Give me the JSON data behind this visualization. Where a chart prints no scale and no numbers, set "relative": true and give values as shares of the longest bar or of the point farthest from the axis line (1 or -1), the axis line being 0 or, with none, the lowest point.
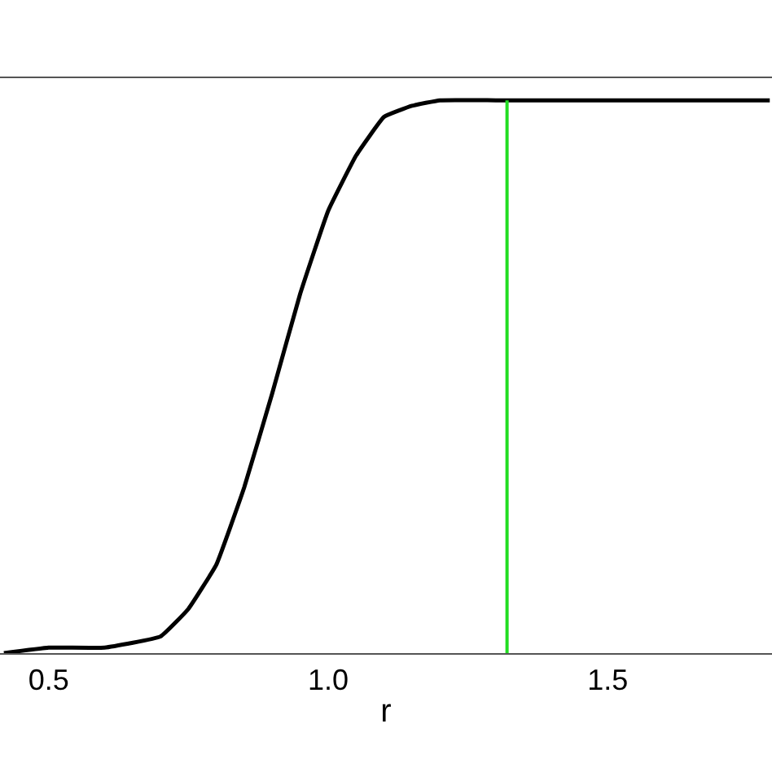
{
  "chart_data": {
    "type": "line",
    "xlabel": "r",
    "relative": true,
    "x": [
      0.42,
      0.5,
      0.6,
      0.7,
      0.75,
      0.8,
      0.85,
      0.9,
      0.95,
      1.0,
      1.05,
      1.1,
      1.15,
      1.2,
      1.3,
      1.4,
      1.5,
      1.6,
      1.7,
      1.79
    ],
    "series": [
      {
        "color": "#000000",
        "values": [
          0.0,
          0.01,
          0.01,
          0.03,
          0.08,
          0.16,
          0.3,
          0.47,
          0.65,
          0.8,
          0.9,
          0.97,
          0.99,
          1.0,
          1.0,
          1.0,
          1.0,
          1.0,
          1.0,
          1.0
        ]
      }
    ],
    "xlim": [
      0.413,
      1.794
    ],
    "xticks": [
      0.5,
      {
        "value": 1.0,
        "label": "1.0"
      },
      1.5
    ],
    "ref_lines": [
      {
        "axis": "x",
        "value": 1.32,
        "color": "#22dd22"
      }
    ],
    "grid": false,
    "marker": "none",
    "line_style": "solid"
  }
}
